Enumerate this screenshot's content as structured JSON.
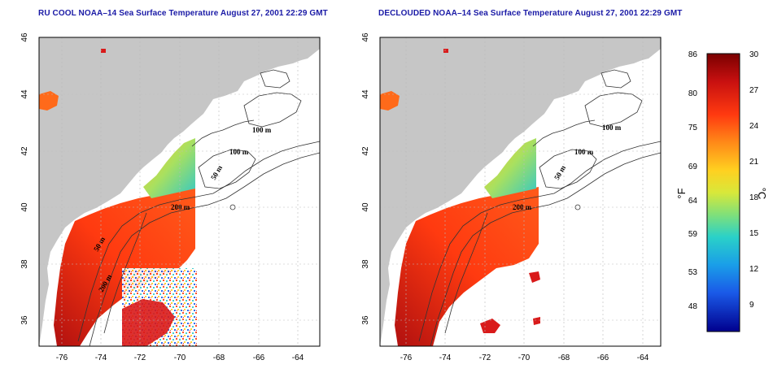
{
  "titles": {
    "left": "RU COOL NOAA–14 Sea Surface Temperature August 27, 2001 22:29 GMT",
    "right": "DECLOUDED NOAA–14 Sea Surface Temperature August 27, 2001 22:29 GMT"
  },
  "axes": {
    "lon_ticks": [
      "-76",
      "-74",
      "-72",
      "-70",
      "-68",
      "-66",
      "-64"
    ],
    "lat_ticks": [
      "46",
      "44",
      "42",
      "40",
      "38",
      "36"
    ]
  },
  "contour_labels": {
    "left": [
      "100 m",
      "100 m",
      "50 m",
      "200 m",
      "50 m",
      "200 m"
    ],
    "right": [
      "100 m",
      "100 m",
      "50 m",
      "200 m"
    ]
  },
  "colorbar": {
    "fahrenheit_ticks": [
      "86",
      "80",
      "75",
      "69",
      "64",
      "59",
      "53",
      "48"
    ],
    "celsius_ticks": [
      "30",
      "27",
      "24",
      "21",
      "18",
      "15",
      "12",
      "9"
    ],
    "fahrenheit_unit": "°F",
    "celsius_unit": "°C",
    "colors": [
      "#7a0000",
      "#d91a1a",
      "#ff5a1a",
      "#ff9a20",
      "#ffd420",
      "#d6e83a",
      "#7fe07a",
      "#2ad1c8",
      "#1a9ee8",
      "#1a5ae8",
      "#1010c8",
      "#000090"
    ]
  },
  "colors": {
    "land": "#c6c6c6",
    "title": "#1a1aa6",
    "contour": "#333333"
  }
}
